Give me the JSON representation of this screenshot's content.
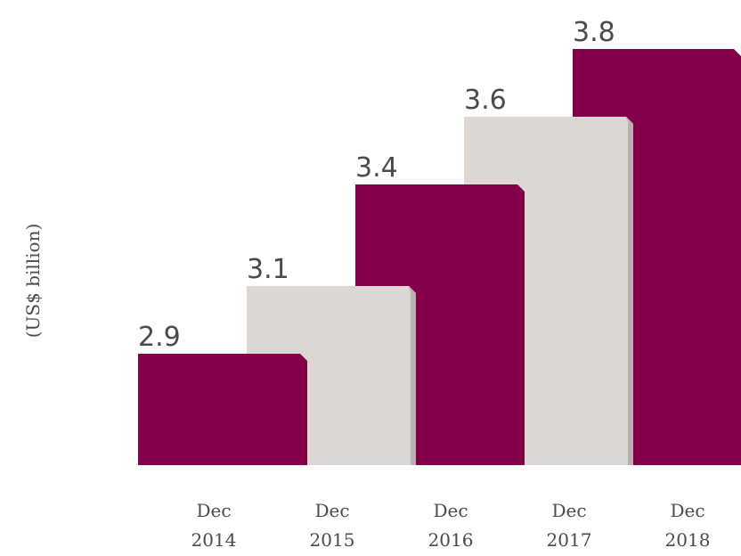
{
  "chart_data": {
    "type": "bar",
    "categories": [
      "Dec\n2014",
      "Dec\n2015",
      "Dec\n2016",
      "Dec\n2017",
      "Dec\n2018"
    ],
    "values": [
      2.9,
      3.1,
      3.4,
      3.6,
      3.8
    ],
    "value_labels": [
      "2.9",
      "3.1",
      "3.4",
      "3.6",
      "3.8"
    ],
    "ylabel": "(US$ billion)",
    "xlabel": "",
    "title": "",
    "colors": {
      "bar_primary": "#85004A",
      "bar_secondary": "#DCD7D2",
      "bar_secondary_edge": "#B8B2AC",
      "text": "#4A4A4A"
    },
    "bar_color_pattern": [
      "primary",
      "secondary",
      "primary",
      "secondary",
      "primary"
    ],
    "grid": false,
    "legend": "none"
  }
}
